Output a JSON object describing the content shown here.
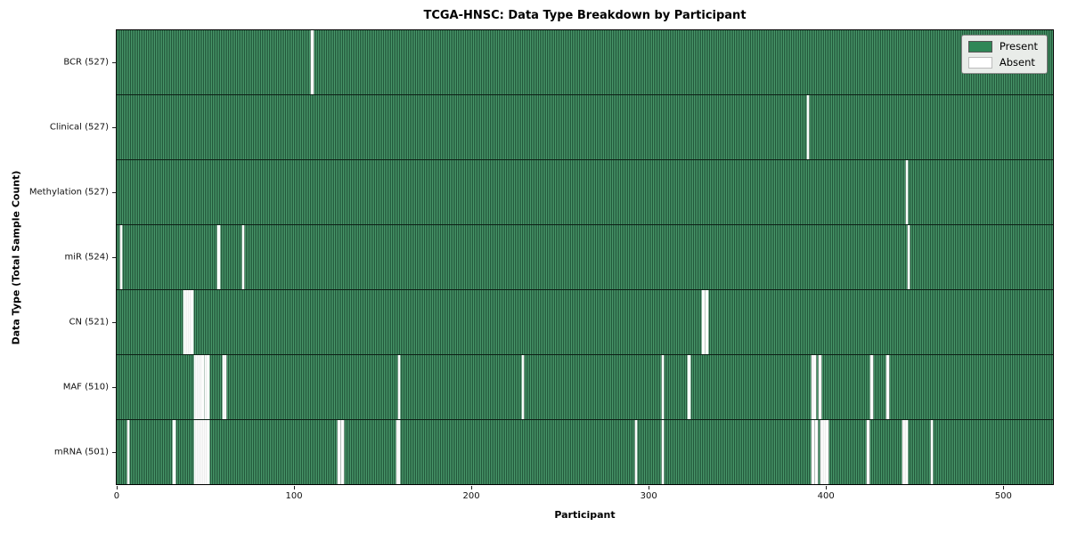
{
  "title": "TCGA-HNSC: Data Type Breakdown by Participant",
  "xlabel": "Participant",
  "ylabel": "Data Type (Total Sample Count)",
  "legend": {
    "present_label": "Present",
    "absent_label": "Absent"
  },
  "colors": {
    "present_fill": "#2f8757",
    "present_edge": "#215539",
    "absent_fill": "#ffffff",
    "legend_bg": "#e9ece9"
  },
  "chart_data": {
    "type": "heatmap",
    "title": "TCGA-HNSC: Data Type Breakdown by Participant",
    "xlabel": "Participant",
    "ylabel": "Data Type (Total Sample Count)",
    "x_ticks": [
      0,
      100,
      200,
      300,
      400,
      500
    ],
    "n_participants": 528,
    "x_range": [
      0,
      528
    ],
    "grid": false,
    "legend_position": "upper right",
    "legend_entries": [
      "Present",
      "Absent"
    ],
    "rows": [
      {
        "data_type": "BCR",
        "label": "BCR (527)",
        "present_count": 527,
        "absent_participants": [
          110
        ]
      },
      {
        "data_type": "Clinical",
        "label": "Clinical (527)",
        "present_count": 527,
        "absent_participants": [
          390
        ]
      },
      {
        "data_type": "Methylation",
        "label": "Methylation (527)",
        "present_count": 527,
        "absent_participants": [
          446
        ]
      },
      {
        "data_type": "miR",
        "label": "miR (524)",
        "present_count": 524,
        "absent_participants": [
          2,
          57,
          71,
          447
        ]
      },
      {
        "data_type": "CN",
        "label": "CN (521)",
        "present_count": 521,
        "absent_participants": [
          38,
          39,
          40,
          41,
          42,
          331,
          333
        ]
      },
      {
        "data_type": "MAF",
        "label": "MAF (510)",
        "present_count": 510,
        "absent_participants": [
          44,
          45,
          46,
          47,
          48,
          50,
          51,
          60,
          61,
          159,
          229,
          308,
          323,
          393,
          394,
          397,
          426,
          435
        ]
      },
      {
        "data_type": "mRNA",
        "label": "mRNA (501)",
        "present_count": 501,
        "absent_participants": [
          6,
          32,
          44,
          45,
          46,
          47,
          48,
          49,
          50,
          51,
          125,
          127,
          158,
          159,
          293,
          308,
          393,
          395,
          398,
          399,
          400,
          401,
          424,
          444,
          445,
          446,
          460
        ]
      }
    ]
  }
}
